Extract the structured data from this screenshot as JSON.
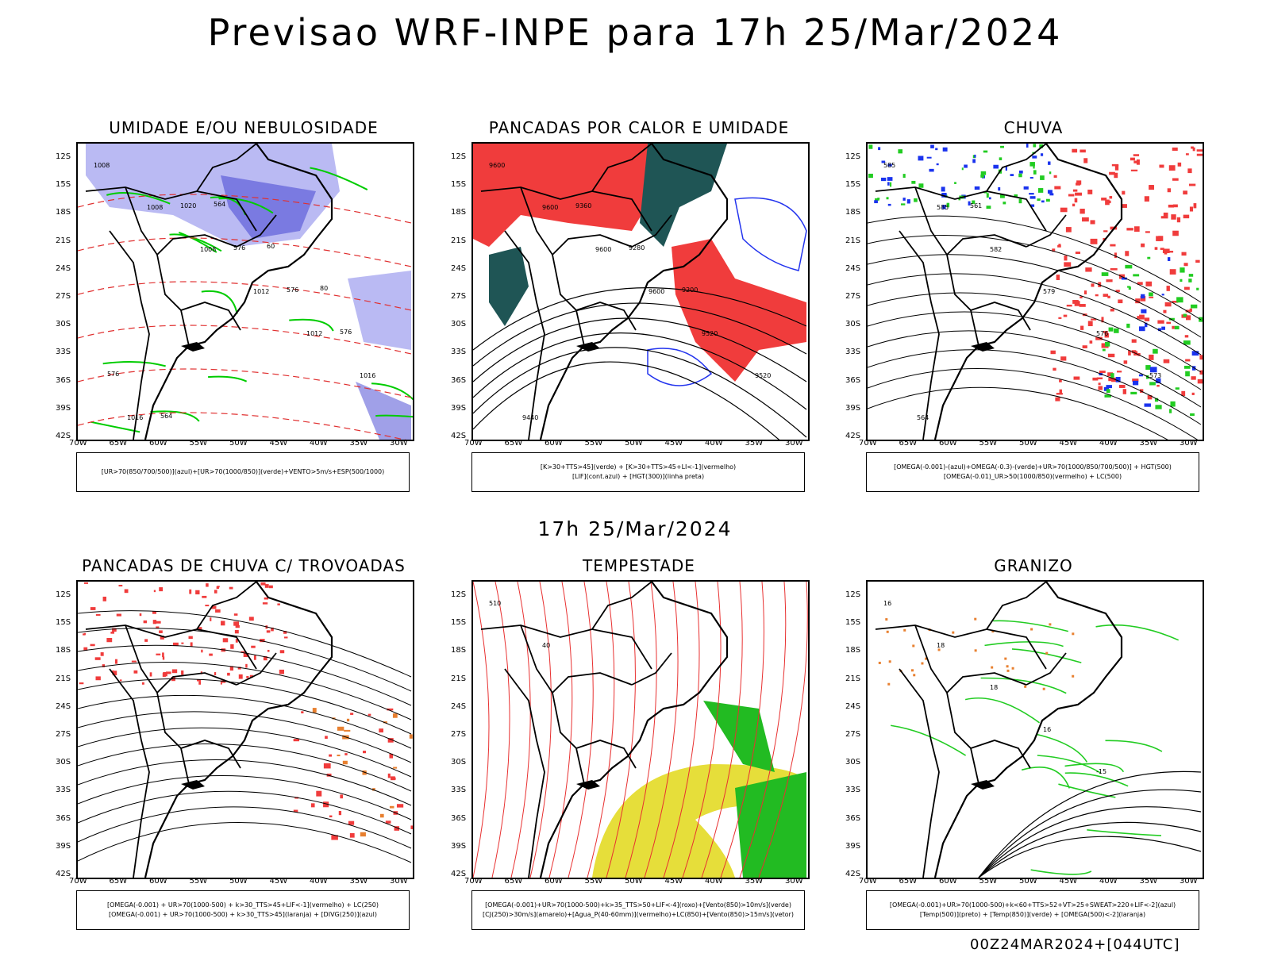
{
  "title": "Previsao WRF-INPE  para 17h 25/Mar/2024",
  "mid_title": "17h 25/Mar/2024",
  "run_stamp": "00Z24MAR2024+[044UTC]",
  "lat_labels": [
    "12S",
    "15S",
    "18S",
    "21S",
    "24S",
    "27S",
    "30S",
    "33S",
    "36S",
    "39S",
    "42S"
  ],
  "lon_labels": [
    "70W",
    "65W",
    "60W",
    "55W",
    "50W",
    "45W",
    "40W",
    "35W",
    "30W"
  ],
  "panels": [
    {
      "title": "UMIDADE E/OU NEBULOSIDADE",
      "legend": [
        "[UR>70(850/700/500)](azul)+[UR>70(1000/850)](verde)+VENTO>5m/s+ESP(500/1000)"
      ],
      "contour_labels": [
        "1008",
        "1008",
        "1008",
        "1012",
        "1012",
        "1016",
        "1016",
        "1020",
        "576",
        "576",
        "576",
        "576",
        "564",
        "564",
        "60",
        "80"
      ],
      "colors": {
        "fill1": "#a9a9f0",
        "fill2": "#6060d8",
        "line1": "#00cc00",
        "line2": "#e03030",
        "line3": "#000000"
      }
    },
    {
      "title": "PANCADAS POR CALOR E UMIDADE",
      "legend": [
        "[K>30+TTS>45](verde) + [K>30+TTS>45+LI<-1](vermelho)",
        "[LIF](cont.azul) + [HGT(300)](linha preta)"
      ],
      "contour_labels": [
        "9600",
        "9600",
        "9600",
        "9600",
        "9520",
        "9520",
        "9440",
        "9360",
        "9280",
        "9200"
      ],
      "colors": {
        "fill1": "#f03c3c",
        "fill2": "#1f5555",
        "line1": "#2233ee",
        "line2": "#000000"
      }
    },
    {
      "title": "CHUVA",
      "legend": [
        "[OMEGA(-0.001)-(azul)+OMEGA(-0.3)-(verde)+UR>70(1000/850/700/500)] + HGT(500)",
        "[OMEGA(-0.01)_UR>50(1000/850)(vermelho) + LC(500)"
      ],
      "contour_labels": [
        "585",
        "585",
        "582",
        "579",
        "576",
        "573",
        "564",
        "561"
      ],
      "colors": {
        "fill1": "#f03c3c",
        "fill2": "#22cc22",
        "fill3": "#1a33ee",
        "line1": "#000000"
      }
    },
    {
      "title": "PANCADAS DE CHUVA C/ TROVOADAS",
      "legend": [
        "[OMEGA(-0.001) + UR>70(1000-500) + k>30_TTS>45+LIF<-1](vermelho) + LC(250)",
        "[OMEGA(-0.001) + UR>70(1000-500) + k>30_TTS>45](laranja) + [DIVG(250)](azul)"
      ],
      "contour_labels": [],
      "colors": {
        "fill1": "#f03c3c",
        "fill2": "#e88030",
        "line1": "#000000"
      }
    },
    {
      "title": "TEMPESTADE",
      "legend": [
        "[OMEGA(-0.001)+UR>70(1000-500)+k>35_TTS>50+LIF<-4](roxo)+[Vento(850)>10m/s](verde)",
        "[CJ(250)>30m/s](amarelo)+[Agua_P(40-60mm)](vermelho)+LC(850)+[Vento(850)>15m/s](vetor)"
      ],
      "contour_labels": [
        "510",
        "40"
      ],
      "colors": {
        "fill1": "#e6de3a",
        "fill2": "#22bb22",
        "line1": "#e83030",
        "line2": "#000000"
      }
    },
    {
      "title": "GRANIZO",
      "legend": [
        "[OMEGA(-0.001)+UR>70(1000-500)+k<60+TTS>52+VT>25+SWEAT>220+LIF<-2](azul)",
        "[Temp(500)](preto) + [Temp(850)](verde) + [OMEGA(500)<-2](laranja)"
      ],
      "contour_labels": [
        "16",
        "18",
        "18",
        "16",
        "-15"
      ],
      "colors": {
        "fill1": "#e88030",
        "line1": "#22cc22",
        "line2": "#000000"
      }
    }
  ]
}
